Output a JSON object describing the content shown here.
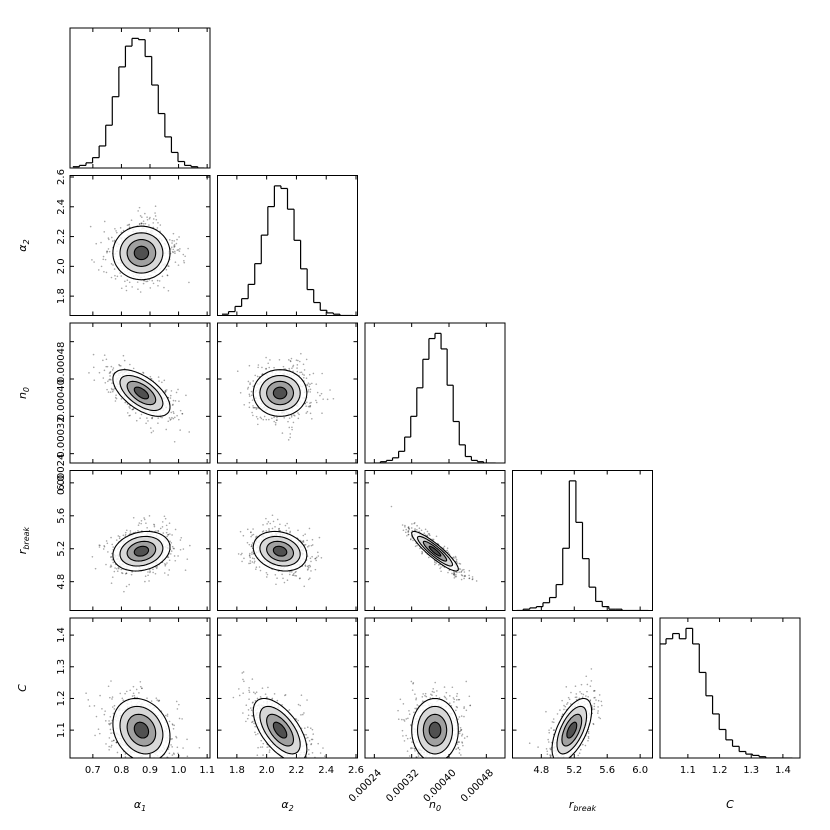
{
  "chart_data": {
    "type": "corner",
    "parameters": [
      {
        "label": {
          "base": "α",
          "sub": "1"
        },
        "lim": [
          0.62,
          1.11
        ],
        "ticks": [
          0.7,
          0.8,
          0.9,
          {
            "value": 1.0,
            "label": "1.0"
          },
          1.1
        ],
        "mean": 0.87,
        "sd": 0.05,
        "bins": [
          0.63,
          0.653,
          0.676,
          0.699,
          0.722,
          0.745,
          0.768,
          0.791,
          0.814,
          0.837,
          0.86,
          0.883,
          0.906,
          0.929,
          0.952,
          0.975,
          0.998,
          1.021,
          1.044,
          1.067,
          1.09
        ],
        "counts": [
          1,
          2,
          4,
          8,
          17,
          33,
          55,
          78,
          94,
          100,
          99,
          86,
          64,
          42,
          24,
          12,
          5,
          2,
          1,
          0
        ]
      },
      {
        "label": {
          "base": "α",
          "sub": "2"
        },
        "lim": [
          1.67,
          2.61
        ],
        "ticks": [
          1.8,
          {
            "value": 2.0,
            "label": "2.0"
          },
          2.2,
          2.4,
          2.6
        ],
        "mean": 2.09,
        "sd": 0.09,
        "bins": [
          1.7,
          1.744,
          1.788,
          1.832,
          1.876,
          1.92,
          1.964,
          2.008,
          2.052,
          2.096,
          2.14,
          2.184,
          2.228,
          2.272,
          2.316,
          2.36,
          2.404,
          2.448,
          2.492,
          2.536,
          2.58
        ],
        "counts": [
          1,
          3,
          7,
          13,
          24,
          40,
          62,
          84,
          100,
          98,
          82,
          58,
          36,
          20,
          10,
          4,
          2,
          1,
          0,
          0
        ]
      },
      {
        "label": {
          "base": "n",
          "sub": "0"
        },
        "lim": [
          0.00022,
          0.00052
        ],
        "ticks": [
          0.00024,
          0.00032,
          {
            "value": 0.0004,
            "label": "0.00040"
          },
          0.00048
        ],
        "mean": 0.00037,
        "sd": 2.5e-05,
        "bins": [
          0.00024,
          0.000253,
          0.000266,
          0.000279,
          0.000292,
          0.000305,
          0.000318,
          0.000331,
          0.000344,
          0.000357,
          0.00037,
          0.000383,
          0.000396,
          0.000409,
          0.000422,
          0.000435,
          0.000448,
          0.000461,
          0.000474,
          0.000487,
          0.0005
        ],
        "counts": [
          0,
          1,
          2,
          4,
          9,
          20,
          36,
          58,
          80,
          96,
          100,
          88,
          60,
          32,
          14,
          5,
          2,
          1,
          0,
          0
        ]
      },
      {
        "label": {
          "base": "r",
          "sub": "break"
        },
        "lim": [
          4.45,
          6.15
        ],
        "ticks": [
          4.8,
          5.2,
          5.6,
          {
            "value": 6.0,
            "label": "6.0"
          }
        ],
        "mean": 5.17,
        "sd": 0.12,
        "bins": [
          4.5,
          4.58,
          4.66,
          4.74,
          4.82,
          4.9,
          4.98,
          5.06,
          5.14,
          5.22,
          5.3,
          5.38,
          5.46,
          5.54,
          5.62,
          5.7,
          5.78,
          5.86,
          5.94,
          6.02,
          6.1
        ],
        "counts": [
          0,
          1,
          2,
          3,
          6,
          10,
          20,
          48,
          100,
          68,
          40,
          18,
          7,
          3,
          1,
          1,
          0,
          0,
          0,
          0
        ]
      },
      {
        "label": {
          "base": "C",
          "sub": ""
        },
        "lim": [
          1.012,
          1.454
        ],
        "ticks": [
          1.1,
          1.2,
          1.3,
          1.4
        ],
        "mean": 1.1,
        "sd": 0.05,
        "bins": [
          1.01,
          1.031,
          1.052,
          1.073,
          1.094,
          1.115,
          1.136,
          1.157,
          1.178,
          1.199,
          1.22,
          1.241,
          1.262,
          1.283,
          1.304,
          1.325,
          1.346,
          1.367,
          1.388,
          1.409,
          1.43
        ],
        "counts": [
          88,
          92,
          96,
          92,
          100,
          88,
          66,
          48,
          34,
          22,
          14,
          9,
          5,
          3,
          2,
          1,
          0,
          0,
          0,
          0
        ]
      }
    ],
    "correlation": [
      [],
      [
        0
      ],
      [
        -0.6,
        0
      ],
      [
        0.2,
        -0.2,
        -0.9
      ],
      [
        -0.2,
        -0.6,
        0,
        0.6
      ]
    ],
    "hist_ylim": [
      0,
      108
    ]
  }
}
